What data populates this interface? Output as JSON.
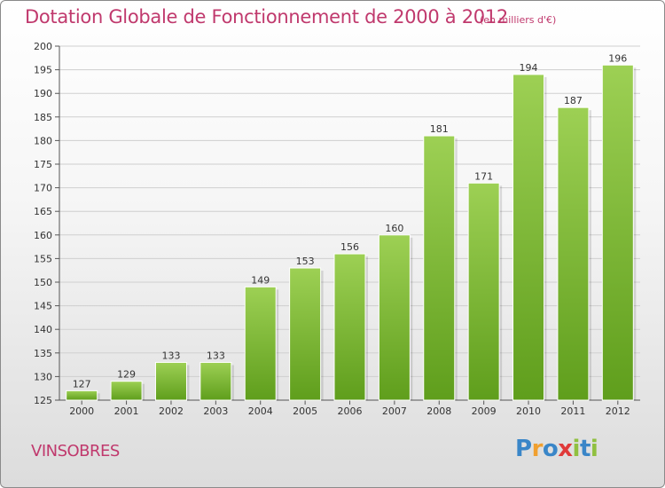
{
  "title": "Dotation Globale de Fonctionnement de 2000 à 2012",
  "subtitle": "(en milliers d'€)",
  "commune": "VINSOBRES",
  "logo": {
    "text": "Proxiti",
    "letters": [
      "P",
      "r",
      "o",
      "x",
      "i",
      "t",
      "i"
    ],
    "colors": [
      "#3a86c8",
      "#f0a030",
      "#3a86c8",
      "#e03a3a",
      "#90c040",
      "#3a86c8",
      "#90c040"
    ]
  },
  "colors": {
    "bar_top": "#9dd054",
    "bar_bottom": "#5f9e1c",
    "title": "#c0396d"
  },
  "chart_data": {
    "type": "bar",
    "title": "Dotation Globale de Fonctionnement de 2000 à 2012",
    "subtitle": "(en milliers d'€)",
    "categories": [
      "2000",
      "2001",
      "2002",
      "2003",
      "2004",
      "2005",
      "2006",
      "2007",
      "2008",
      "2009",
      "2010",
      "2011",
      "2012"
    ],
    "values": [
      127,
      129,
      133,
      133,
      149,
      153,
      156,
      160,
      181,
      171,
      194,
      187,
      196
    ],
    "ylim": [
      125,
      200
    ],
    "yticks": [
      125,
      130,
      135,
      140,
      145,
      150,
      155,
      160,
      165,
      170,
      175,
      180,
      185,
      190,
      195,
      200
    ],
    "grid": true
  }
}
